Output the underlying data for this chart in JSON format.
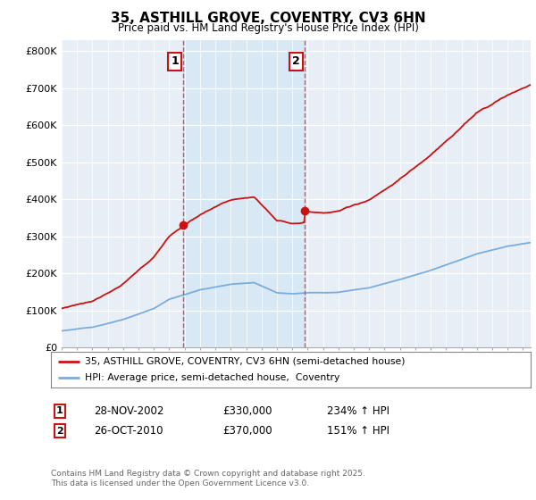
{
  "title": "35, ASTHILL GROVE, COVENTRY, CV3 6HN",
  "subtitle": "Price paid vs. HM Land Registry's House Price Index (HPI)",
  "ylabel_ticks": [
    "£0",
    "£100K",
    "£200K",
    "£300K",
    "£400K",
    "£500K",
    "£600K",
    "£700K",
    "£800K"
  ],
  "ytick_values": [
    0,
    100000,
    200000,
    300000,
    400000,
    500000,
    600000,
    700000,
    800000
  ],
  "ylim": [
    0,
    830000
  ],
  "xlim_start": 1995.0,
  "xlim_end": 2025.5,
  "hpi_color": "#7aaddc",
  "house_color": "#cc1111",
  "vline_color": "#cc4444",
  "shade_color": "#d8e8f5",
  "background_color": "#e8eef5",
  "plot_bg_color": "#e8eef5",
  "legend_label_house": "35, ASTHILL GROVE, COVENTRY, CV3 6HN (semi-detached house)",
  "legend_label_hpi": "HPI: Average price, semi-detached house,  Coventry",
  "table_row1": [
    "1",
    "28-NOV-2002",
    "£330,000",
    "234% ↑ HPI"
  ],
  "table_row2": [
    "2",
    "26-OCT-2010",
    "£370,000",
    "151% ↑ HPI"
  ],
  "footer": "Contains HM Land Registry data © Crown copyright and database right 2025.\nThis data is licensed under the Open Government Licence v3.0.",
  "vline1_x": 2002.91,
  "vline2_x": 2010.82,
  "p1": 330000,
  "p2": 370000
}
